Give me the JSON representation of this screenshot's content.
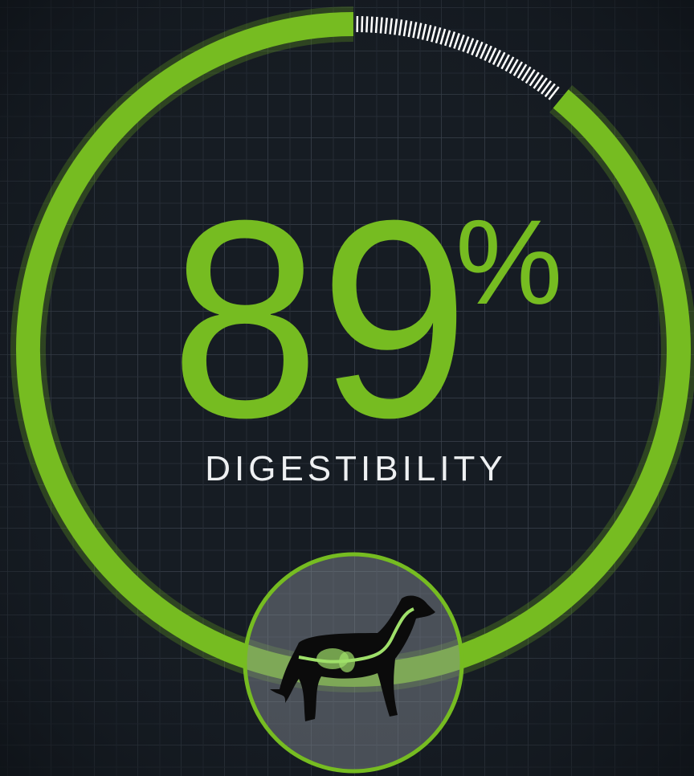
{
  "chart_data": {
    "type": "gauge",
    "value": 89,
    "unit": "%",
    "label": "DIGESTIBILITY",
    "color": "#76bc21",
    "ylim": [
      0,
      100
    ]
  }
}
